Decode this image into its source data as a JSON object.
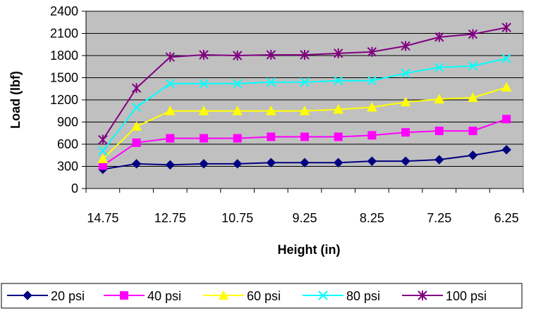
{
  "chart_data": {
    "type": "line",
    "title": "",
    "xlabel": "Height (in)",
    "ylabel": "Load (lbf)",
    "x_tick_labels": [
      "14.75",
      "12.75",
      "10.75",
      "9.25",
      "8.25",
      "7.25",
      "6.25"
    ],
    "categories": [
      "14.75",
      "",
      "12.75",
      "",
      "10.75",
      "",
      "9.25",
      "",
      "8.25",
      "",
      "7.25",
      "",
      "6.25"
    ],
    "ylim": [
      0,
      2400
    ],
    "yticks": [
      0,
      300,
      600,
      900,
      1200,
      1500,
      1800,
      2100,
      2400
    ],
    "grid": true,
    "legend_position": "bottom",
    "plot_background": "#c0c0c0",
    "series": [
      {
        "name": "20 psi",
        "color": "#000080",
        "marker": "diamond",
        "values": [
          260,
          335,
          320,
          335,
          335,
          350,
          350,
          350,
          370,
          370,
          390,
          450,
          525
        ]
      },
      {
        "name": "40 psi",
        "color": "#ff00ff",
        "marker": "square",
        "values": [
          310,
          620,
          680,
          680,
          680,
          700,
          700,
          700,
          720,
          760,
          780,
          780,
          940
        ]
      },
      {
        "name": "60 psi",
        "color": "#ffff00",
        "marker": "triangle",
        "values": [
          400,
          840,
          1050,
          1050,
          1050,
          1050,
          1050,
          1070,
          1100,
          1170,
          1210,
          1230,
          1370
        ]
      },
      {
        "name": "80 psi",
        "color": "#00ffff",
        "marker": "x",
        "values": [
          510,
          1100,
          1420,
          1420,
          1420,
          1440,
          1440,
          1460,
          1460,
          1560,
          1640,
          1660,
          1760
        ]
      },
      {
        "name": "100 psi",
        "color": "#800080",
        "marker": "star",
        "values": [
          660,
          1360,
          1780,
          1810,
          1800,
          1810,
          1810,
          1830,
          1850,
          1930,
          2050,
          2090,
          2180
        ]
      }
    ]
  }
}
